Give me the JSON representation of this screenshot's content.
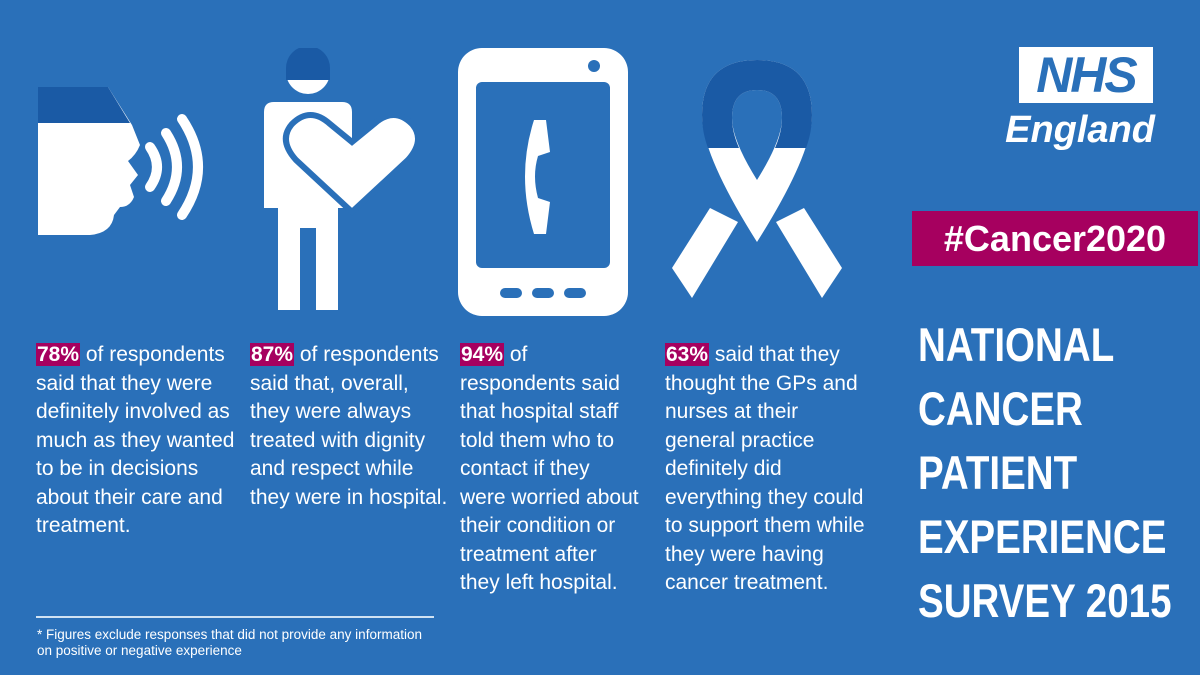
{
  "stats": [
    {
      "pct": "78%",
      "text": " of respondents said that they were definitely involved as much as they wanted to be in decisions about their care and treatment."
    },
    {
      "pct": "87%",
      "text": " of respondents said that, overall, they were always treated with dignity and respect while they were in hospital."
    },
    {
      "pct": "94%",
      "text": " of respondents said that hospital staff told them who to contact if they were worried about their condition or treatment after they left hospital."
    },
    {
      "pct": "63%",
      "text": " said that they thought the GPs and nurses at their general practice definitely did everything they could to support them while they were having cancer treatment."
    }
  ],
  "footnote": "* Figures exclude responses that did not provide any information on positive or negative experience",
  "logo": {
    "nhs": "NHS",
    "org": "England"
  },
  "hashtag": "#Cancer2020",
  "title_lines": [
    "NATIONAL",
    "CANCER",
    "PATIENT",
    "EXPERIENCE",
    "SURVEY 2015"
  ],
  "colors": {
    "background": "#2a70b9",
    "accent": "#a6005f",
    "icon_dark": "#1a5aa5",
    "white": "#ffffff"
  },
  "icons": [
    "speaking-head-icon",
    "person-heart-icon",
    "phone-call-icon",
    "awareness-ribbon-icon"
  ]
}
